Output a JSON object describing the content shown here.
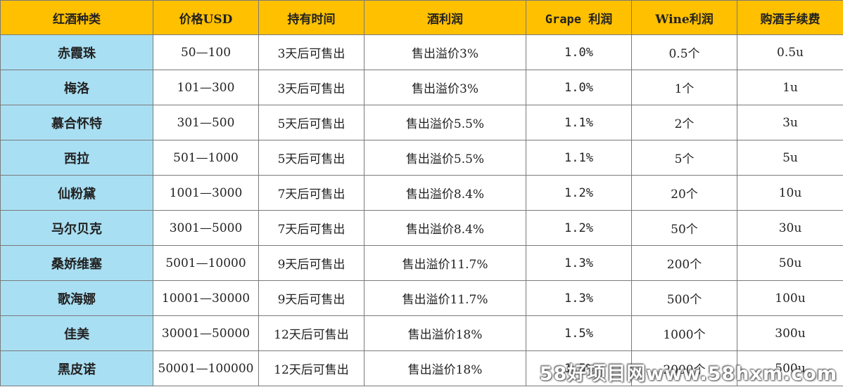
{
  "table": {
    "headers": [
      "红酒种类",
      "价格USD",
      "持有时间",
      "酒利润",
      "Grape 利润",
      "Wine利润",
      "购酒手续费"
    ],
    "rows": [
      [
        "赤霞珠",
        "50—100",
        "3天后可售出",
        "售出溢价3%",
        "1.0%",
        "0.5个",
        "0.5u"
      ],
      [
        "梅洛",
        "101—300",
        "3天后可售出",
        "售出溢价3%",
        "1.0%",
        "1个",
        "1u"
      ],
      [
        "慕合怀特",
        "301—500",
        "5天后可售出",
        "售出溢价5.5%",
        "1.1%",
        "2个",
        "3u"
      ],
      [
        "西拉",
        "501—1000",
        "5天后可售出",
        "售出溢价5.5%",
        "1.1%",
        "5个",
        "5u"
      ],
      [
        "仙粉黛",
        "1001—3000",
        "7天后可售出",
        "售出溢价8.4%",
        "1.2%",
        "20个",
        "10u"
      ],
      [
        "马尔贝克",
        "3001—5000",
        "7天后可售出",
        "售出溢价8.4%",
        "1.2%",
        "50个",
        "30u"
      ],
      [
        "桑娇维塞",
        "5001—10000",
        "9天后可售出",
        "售出溢价11.7%",
        "1.3%",
        "200个",
        "50u"
      ],
      [
        "歌海娜",
        "10001—30000",
        "9天后可售出",
        "售出溢价11.7%",
        "1.3%",
        "500个",
        "100u"
      ],
      [
        "佳美",
        "30001—50000",
        "12天后可售出",
        "售出溢价18%",
        "1.5%",
        "1000个",
        "300u"
      ],
      [
        "黑皮诺",
        "50001—100000",
        "12天后可售出",
        "售出溢价18%",
        "1.5%",
        "2000个",
        "500u"
      ]
    ]
  },
  "watermark": "58好项目网www.58hxm.com",
  "colors": {
    "header_bg": "#ffc000",
    "name_col_bg": "#a9dff3",
    "border": "#7a7a7a"
  }
}
